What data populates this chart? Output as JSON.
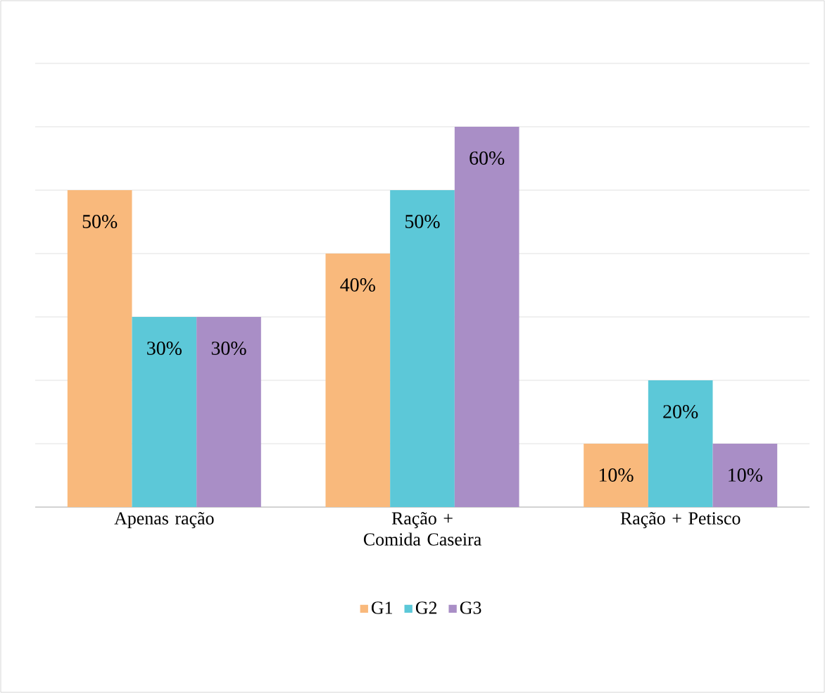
{
  "chart_data": {
    "type": "bar",
    "categories": [
      "Apenas ração",
      "Ração + Comida Caseira",
      "Ração + Petisco"
    ],
    "series": [
      {
        "name": "G1",
        "color": "#f9b97c",
        "values": [
          50,
          40,
          10
        ],
        "value_labels": [
          "50%",
          "40%",
          "10%"
        ]
      },
      {
        "name": "G2",
        "color": "#5cc8d8",
        "values": [
          30,
          50,
          20
        ],
        "value_labels": [
          "30%",
          "50%",
          "20%"
        ]
      },
      {
        "name": "G3",
        "color": "#a98ec6",
        "values": [
          30,
          60,
          10
        ],
        "value_labels": [
          "30%",
          "60%",
          "10%"
        ]
      }
    ],
    "ylim": [
      0,
      70
    ],
    "yticks": [
      {
        "value": 0,
        "label": null
      },
      {
        "value": 10,
        "label": null
      },
      {
        "value": 20,
        "label": null
      },
      {
        "value": 30,
        "label": null
      },
      {
        "value": 40,
        "label": null
      },
      {
        "value": 50,
        "label": null
      },
      {
        "value": 60,
        "label": null
      },
      {
        "value": 70,
        "label": null
      }
    ],
    "grid": "y",
    "tick_labels": "x",
    "legend": "bottom"
  }
}
